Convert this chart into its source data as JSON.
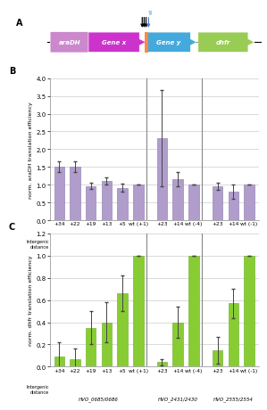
{
  "panel_B": {
    "groups": [
      {
        "name": "HVO_0685/0686",
        "bars": [
          {
            "label": "+34",
            "value": 1.52,
            "err": 0.15
          },
          {
            "label": "+22",
            "value": 1.52,
            "err": 0.15
          },
          {
            "label": "+19",
            "value": 0.97,
            "err": 0.08
          },
          {
            "label": "+13",
            "value": 1.1,
            "err": 0.1
          },
          {
            "label": "+5",
            "value": 0.92,
            "err": 0.12
          },
          {
            "label": "wt (+1)",
            "value": 1.0,
            "err": 0.0
          }
        ]
      },
      {
        "name": "HVO_2431/2430",
        "bars": [
          {
            "label": "+23",
            "value": 2.32,
            "err": 1.35
          },
          {
            "label": "+14",
            "value": 1.15,
            "err": 0.2
          },
          {
            "label": "wt (-4)",
            "value": 1.0,
            "err": 0.0
          }
        ]
      },
      {
        "name": "HVO_2555/2554",
        "bars": [
          {
            "label": "+23",
            "value": 0.95,
            "err": 0.1
          },
          {
            "label": "+14",
            "value": 0.82,
            "err": 0.2
          },
          {
            "label": "wt (-1)",
            "value": 1.0,
            "err": 0.0
          }
        ]
      }
    ],
    "ylim": [
      0,
      4.0
    ],
    "yticks": [
      0.0,
      0.5,
      1.0,
      1.5,
      2.0,
      2.5,
      3.0,
      3.5,
      4.0
    ],
    "ylabel": "norm. araDH translation efficiency",
    "bar_color": "#b09dcc",
    "bar_edgecolor": "#8875aa"
  },
  "panel_C": {
    "groups": [
      {
        "name": "HVO_0685/0686",
        "bars": [
          {
            "label": "+34",
            "value": 0.09,
            "err": 0.13
          },
          {
            "label": "+22",
            "value": 0.07,
            "err": 0.09
          },
          {
            "label": "+19",
            "value": 0.35,
            "err": 0.15
          },
          {
            "label": "+13",
            "value": 0.4,
            "err": 0.18
          },
          {
            "label": "+5",
            "value": 0.66,
            "err": 0.16
          },
          {
            "label": "wt (+1)",
            "value": 1.0,
            "err": 0.0
          }
        ]
      },
      {
        "name": "HVO_2431/2430",
        "bars": [
          {
            "label": "+23",
            "value": 0.04,
            "err": 0.03
          },
          {
            "label": "+14",
            "value": 0.4,
            "err": 0.14
          },
          {
            "label": "wt (-4)",
            "value": 1.0,
            "err": 0.0
          }
        ]
      },
      {
        "name": "HVO_2555/2554",
        "bars": [
          {
            "label": "+23",
            "value": 0.15,
            "err": 0.12
          },
          {
            "label": "+14",
            "value": 0.57,
            "err": 0.13
          },
          {
            "label": "wt (-1)",
            "value": 1.0,
            "err": 0.0
          }
        ]
      }
    ],
    "ylim": [
      0,
      1.2
    ],
    "yticks": [
      0.0,
      0.2,
      0.4,
      0.6,
      0.8,
      1.0,
      1.2
    ],
    "ylabel": "norm. dhfr translation efficiency",
    "bar_color": "#88cc33",
    "bar_edgecolor": "#66aa22"
  },
  "gene_colors": {
    "araDH": "#cc88cc",
    "Gene x": "#cc33cc",
    "junction": "#ff9944",
    "Gene y": "#44aadd",
    "dhfr": "#99cc55"
  },
  "xlabel_intergenic": "Intergenic\ndistance",
  "fig_bg": "#ffffff",
  "axis_bg": "#ffffff",
  "grid_color": "#cccccc",
  "bar_width": 0.65
}
